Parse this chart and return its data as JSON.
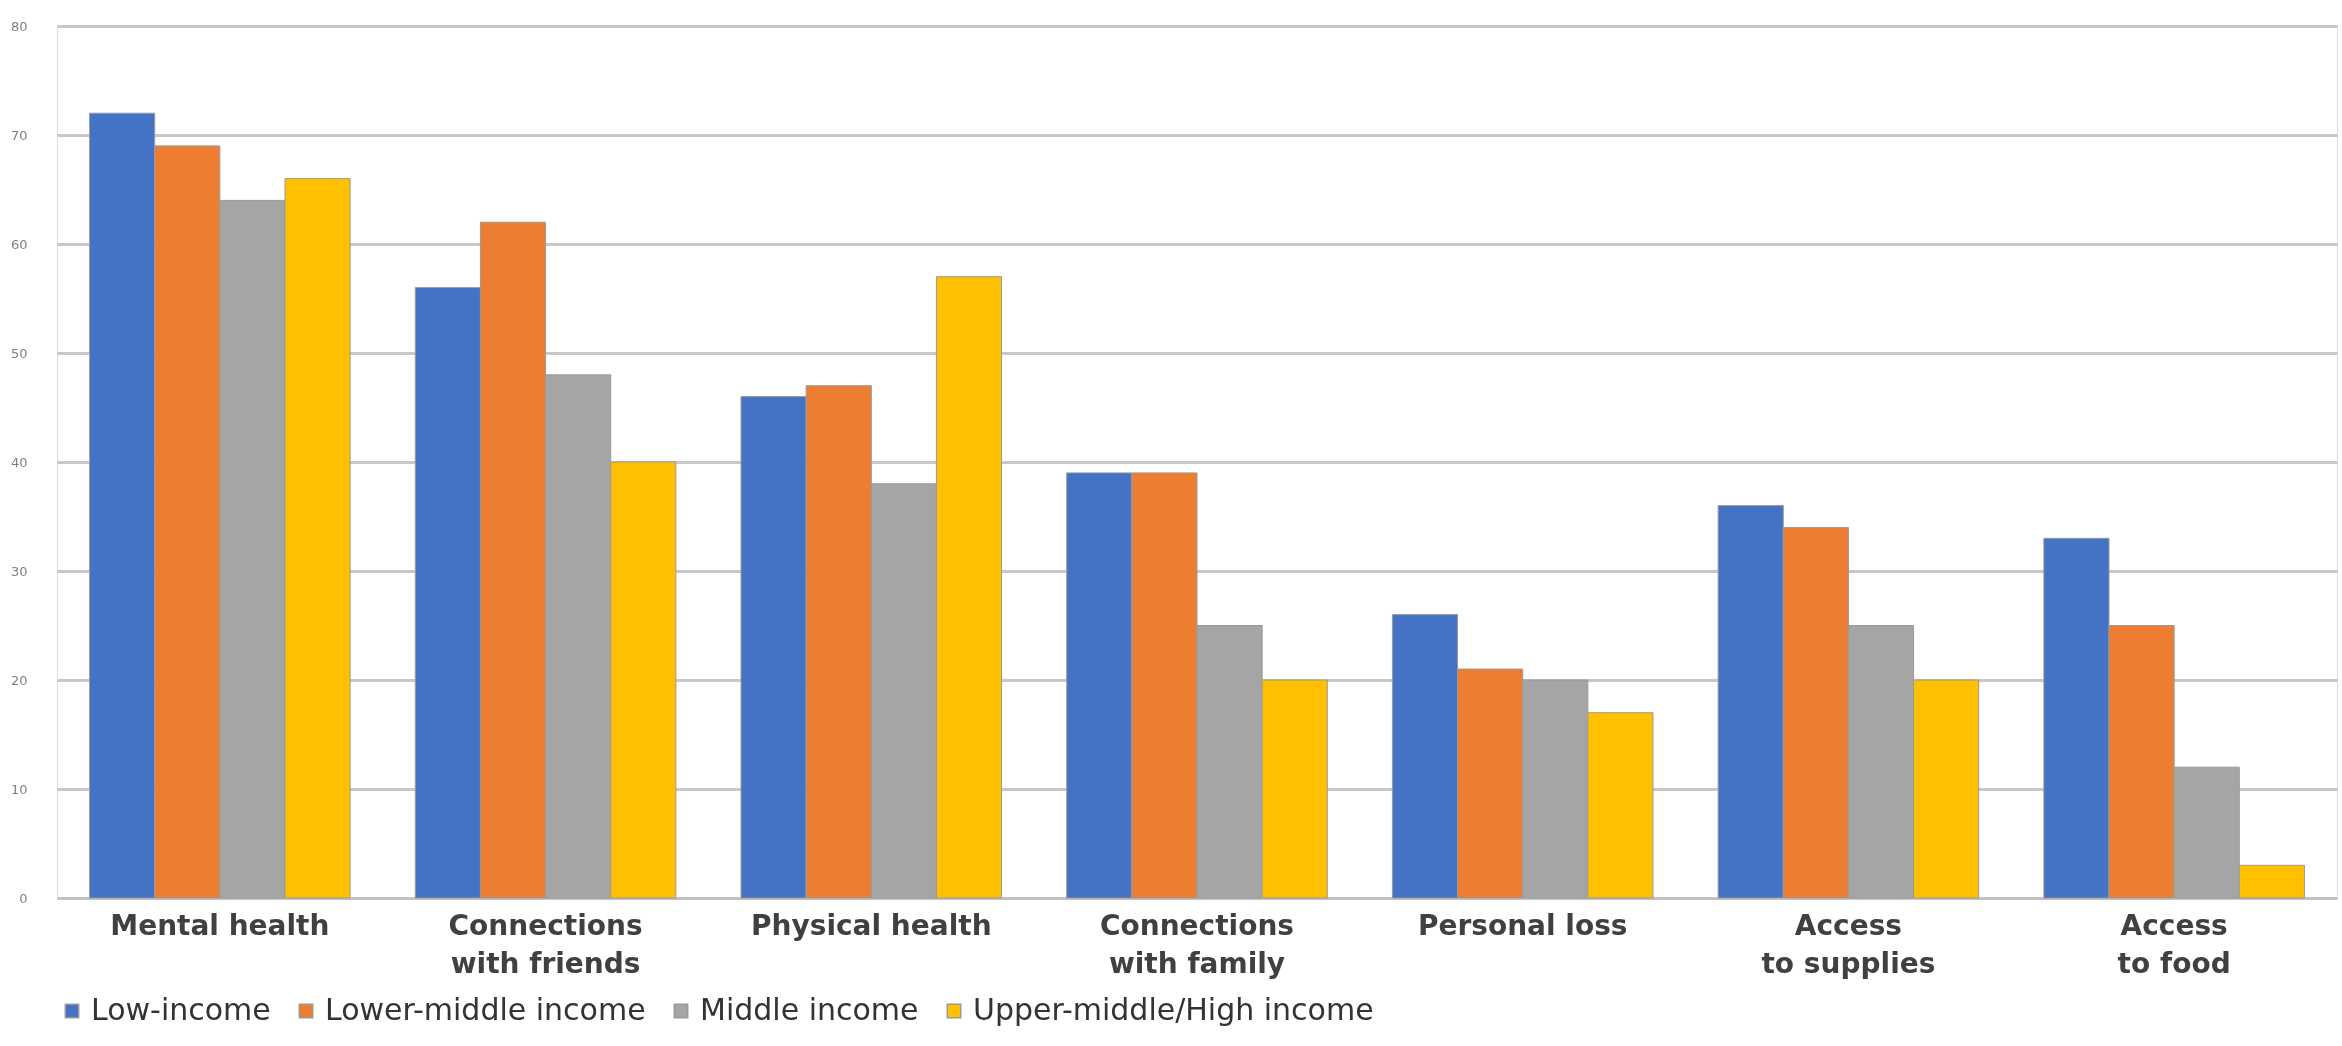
{
  "chart_data": {
    "type": "bar",
    "categories": [
      "Mental health",
      "Connections with friends",
      "Physical health",
      "Connections with family",
      "Personal loss",
      "Access to supplies",
      "Access to food"
    ],
    "series": [
      {
        "name": "Low-income",
        "color": "#4472c4",
        "values": [
          72,
          56,
          46,
          39,
          26,
          36,
          33
        ]
      },
      {
        "name": "Lower-middle income",
        "color": "#ed7d31",
        "values": [
          69,
          62,
          47,
          39,
          21,
          34,
          25
        ]
      },
      {
        "name": "Middle income",
        "color": "#a5a5a5",
        "values": [
          64,
          48,
          38,
          25,
          20,
          25,
          12
        ]
      },
      {
        "name": "Upper-middle/High income",
        "color": "#ffc000",
        "values": [
          66,
          40,
          57,
          20,
          17,
          20,
          3
        ]
      }
    ],
    "ylim": [
      0,
      80
    ],
    "yticks": [
      0,
      10,
      20,
      30,
      40,
      50,
      60,
      70,
      80
    ],
    "grid": "y",
    "legend": "bottom"
  }
}
